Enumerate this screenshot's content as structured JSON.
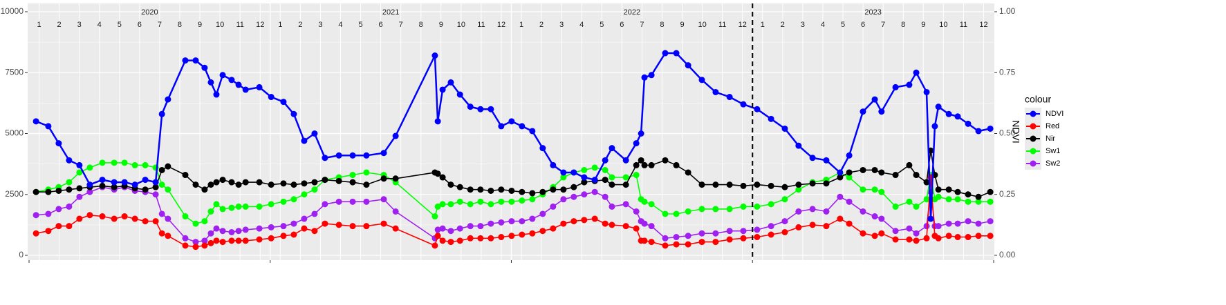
{
  "chart_data": {
    "type": "line",
    "years": [
      "2020",
      "2021",
      "2022",
      "2023"
    ],
    "months": [
      "1",
      "2",
      "3",
      "4",
      "5",
      "6",
      "7",
      "8",
      "9",
      "10",
      "11",
      "12"
    ],
    "x": [
      2020.029,
      2020.08,
      2020.123,
      2020.166,
      2020.209,
      2020.252,
      2020.304,
      2020.353,
      2020.396,
      2020.439,
      2020.482,
      2020.525,
      2020.551,
      2020.576,
      2020.648,
      2020.691,
      2020.728,
      2020.754,
      2020.777,
      2020.803,
      2020.84,
      2020.869,
      2020.898,
      2020.955,
      2021.004,
      2021.055,
      2021.098,
      2021.141,
      2021.184,
      2021.227,
      2021.285,
      2021.342,
      2021.399,
      2021.471,
      2021.52,
      2021.683,
      2021.695,
      2021.715,
      2021.749,
      2021.787,
      2021.83,
      2021.872,
      2021.915,
      2021.958,
      2022.001,
      2022.044,
      2022.087,
      2022.13,
      2022.173,
      2022.216,
      2022.259,
      2022.302,
      2022.346,
      2022.389,
      2022.417,
      2022.475,
      2022.518,
      2022.538,
      2022.552,
      2022.581,
      2022.638,
      2022.684,
      2022.733,
      2022.79,
      2022.847,
      2022.905,
      2022.962,
      2023.019,
      2023.077,
      2023.134,
      2023.191,
      2023.249,
      2023.306,
      2023.363,
      2023.401,
      2023.458,
      2023.507,
      2023.535,
      2023.593,
      2023.65,
      2023.679,
      2023.722,
      2023.739,
      2023.756,
      2023.771,
      2023.814,
      2023.851,
      2023.894,
      2023.937,
      2023.986
    ],
    "series": [
      {
        "name": "NDVI",
        "color": "#0000ff",
        "axis": "y2",
        "values": [
          0.55,
          0.53,
          0.46,
          0.39,
          0.37,
          0.29,
          0.31,
          0.3,
          0.3,
          0.29,
          0.31,
          0.3,
          0.58,
          0.64,
          0.8,
          0.8,
          0.77,
          0.71,
          0.66,
          0.74,
          0.72,
          0.7,
          0.68,
          0.69,
          0.65,
          0.63,
          0.58,
          0.47,
          0.5,
          0.4,
          0.41,
          0.41,
          0.41,
          0.42,
          0.49,
          0.82,
          0.55,
          0.68,
          0.71,
          0.66,
          0.61,
          0.6,
          0.6,
          0.53,
          0.55,
          0.53,
          0.51,
          0.44,
          0.37,
          0.34,
          0.34,
          0.32,
          0.31,
          0.39,
          0.44,
          0.39,
          0.46,
          0.5,
          0.73,
          0.74,
          0.83,
          0.83,
          0.78,
          0.72,
          0.67,
          0.65,
          0.62,
          0.6,
          0.56,
          0.52,
          0.45,
          0.4,
          0.39,
          0.34,
          0.41,
          0.59,
          0.64,
          0.59,
          0.69,
          0.7,
          0.75,
          0.67,
          0.15,
          0.53,
          0.61,
          0.58,
          0.57,
          0.54,
          0.51,
          0.52
        ]
      },
      {
        "name": "Red",
        "color": "#ff0000",
        "values": [
          900,
          1000,
          1200,
          1200,
          1500,
          1650,
          1600,
          1500,
          1600,
          1500,
          1400,
          1400,
          900,
          800,
          400,
          350,
          400,
          500,
          600,
          550,
          600,
          600,
          600,
          650,
          700,
          800,
          850,
          1100,
          1000,
          1300,
          1250,
          1200,
          1200,
          1300,
          1100,
          400,
          800,
          600,
          550,
          600,
          700,
          700,
          700,
          750,
          800,
          850,
          900,
          1000,
          1100,
          1300,
          1400,
          1450,
          1500,
          1300,
          1250,
          1200,
          1100,
          600,
          600,
          550,
          400,
          450,
          450,
          550,
          550,
          650,
          700,
          750,
          850,
          950,
          1150,
          1250,
          1200,
          1500,
          1300,
          900,
          800,
          900,
          650,
          650,
          600,
          700,
          3200,
          800,
          700,
          800,
          750,
          750,
          800,
          800
        ]
      },
      {
        "name": "Nir",
        "color": "#000000",
        "values": [
          2600,
          2600,
          2650,
          2700,
          2750,
          2800,
          2850,
          2800,
          2850,
          2750,
          2700,
          2800,
          3500,
          3650,
          3300,
          2900,
          2700,
          2900,
          3000,
          3100,
          3000,
          2900,
          3000,
          3000,
          2900,
          2950,
          2900,
          2950,
          3000,
          3100,
          3050,
          3000,
          2900,
          3150,
          3150,
          3400,
          3350,
          3200,
          2900,
          2800,
          2700,
          2700,
          2650,
          2700,
          2650,
          2600,
          2550,
          2600,
          2700,
          2700,
          2800,
          3000,
          3050,
          3100,
          2900,
          2900,
          3700,
          3900,
          3700,
          3700,
          3900,
          3700,
          3400,
          2900,
          2900,
          2900,
          2850,
          2900,
          2850,
          2800,
          2900,
          2950,
          2950,
          3200,
          3400,
          3500,
          3500,
          3400,
          3300,
          3700,
          3300,
          3000,
          4300,
          3300,
          2700,
          2700,
          2600,
          2500,
          2400,
          2600
        ]
      },
      {
        "name": "Sw1",
        "color": "#00ff00",
        "values": [
          2600,
          2700,
          2800,
          3000,
          3400,
          3600,
          3800,
          3800,
          3800,
          3700,
          3700,
          3600,
          2900,
          2700,
          1600,
          1300,
          1400,
          1800,
          2100,
          1900,
          1950,
          2000,
          2000,
          2000,
          2100,
          2200,
          2300,
          2500,
          2700,
          3100,
          3200,
          3300,
          3400,
          3300,
          3000,
          1600,
          2000,
          2100,
          2100,
          2200,
          2100,
          2200,
          2100,
          2200,
          2200,
          2250,
          2300,
          2500,
          2800,
          3200,
          3400,
          3500,
          3600,
          3500,
          3200,
          3200,
          3300,
          2300,
          2200,
          2100,
          1700,
          1700,
          1800,
          1900,
          1900,
          1900,
          2000,
          2000,
          2100,
          2300,
          2700,
          3000,
          3100,
          3400,
          3200,
          2700,
          2700,
          2600,
          2000,
          2200,
          2000,
          2300,
          3300,
          2300,
          2400,
          2300,
          2300,
          2200,
          2200,
          2200
        ]
      },
      {
        "name": "Sw2",
        "color": "#a020f0",
        "values": [
          1650,
          1700,
          1900,
          2000,
          2400,
          2600,
          2800,
          2700,
          2800,
          2650,
          2600,
          2500,
          1700,
          1500,
          700,
          550,
          600,
          900,
          1100,
          1000,
          950,
          1000,
          1050,
          1100,
          1150,
          1200,
          1300,
          1500,
          1700,
          2100,
          2200,
          2200,
          2200,
          2300,
          1800,
          700,
          1050,
          1100,
          1000,
          1100,
          1200,
          1200,
          1300,
          1350,
          1400,
          1400,
          1500,
          1700,
          2000,
          2300,
          2400,
          2500,
          2600,
          2400,
          2000,
          2100,
          1800,
          1400,
          1300,
          1200,
          700,
          750,
          800,
          900,
          900,
          1000,
          1000,
          1050,
          1200,
          1400,
          1800,
          1900,
          1800,
          2400,
          2200,
          1800,
          1600,
          1500,
          1000,
          1100,
          900,
          1200,
          2600,
          1200,
          1200,
          1300,
          1300,
          1400,
          1300,
          1400
        ]
      }
    ],
    "xlim": [
      2020,
      2024
    ],
    "xticks": [
      2020,
      2021,
      2022,
      2023,
      2024
    ],
    "ylim": [
      0,
      10000
    ],
    "yticks": [
      0,
      2500,
      5000,
      7500,
      10000
    ],
    "y2lim": [
      0,
      1
    ],
    "y2ticks": [
      {
        "value": 0,
        "label": "0.00"
      },
      {
        "value": 0.25,
        "label": "0.25"
      },
      {
        "value": 0.5,
        "label": "0.50"
      },
      {
        "value": 0.75,
        "label": "0.75"
      },
      {
        "value": 1,
        "label": "1.00"
      }
    ],
    "y2label": "NDVI",
    "vline": 2023,
    "legend_title": "colour",
    "legend": "right",
    "grid": true
  }
}
